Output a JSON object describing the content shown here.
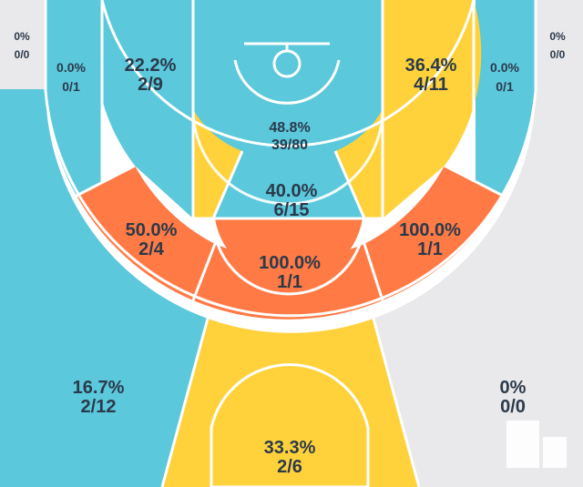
{
  "colors": {
    "cold": "#5bc8dc",
    "average": "#ffd23c",
    "hot": "#ff7a45",
    "no_data": "#e9e9eb",
    "lines": "#ffffff",
    "text": "#2b3a4a"
  },
  "zones": {
    "left_corner_outer": {
      "pct": "0%",
      "made_att": "0/0"
    },
    "right_corner_outer": {
      "pct": "0%",
      "made_att": "0/0"
    },
    "left_corner_three": {
      "pct": "0.0%",
      "made_att": "0/1"
    },
    "right_corner_three": {
      "pct": "0.0%",
      "made_att": "0/1"
    },
    "left_baseline_mid": {
      "pct": "22.2%",
      "made_att": "2/9"
    },
    "right_baseline_mid": {
      "pct": "36.4%",
      "made_att": "4/11"
    },
    "restricted_area": {
      "pct": "48.8%",
      "made_att": "39/80"
    },
    "paint_non_ra": {
      "pct": "40.0%",
      "made_att": "6/15"
    },
    "left_wing_mid": {
      "pct": "50.0%",
      "made_att": "2/4"
    },
    "right_wing_mid": {
      "pct": "100.0%",
      "made_att": "1/1"
    },
    "top_key_mid": {
      "pct": "100.0%",
      "made_att": "1/1"
    },
    "left_wing_three": {
      "pct": "16.7%",
      "made_att": "2/12"
    },
    "right_wing_three": {
      "pct": "0%",
      "made_att": "0/0"
    },
    "top_three": {
      "pct": "33.3%",
      "made_att": "2/6"
    }
  }
}
